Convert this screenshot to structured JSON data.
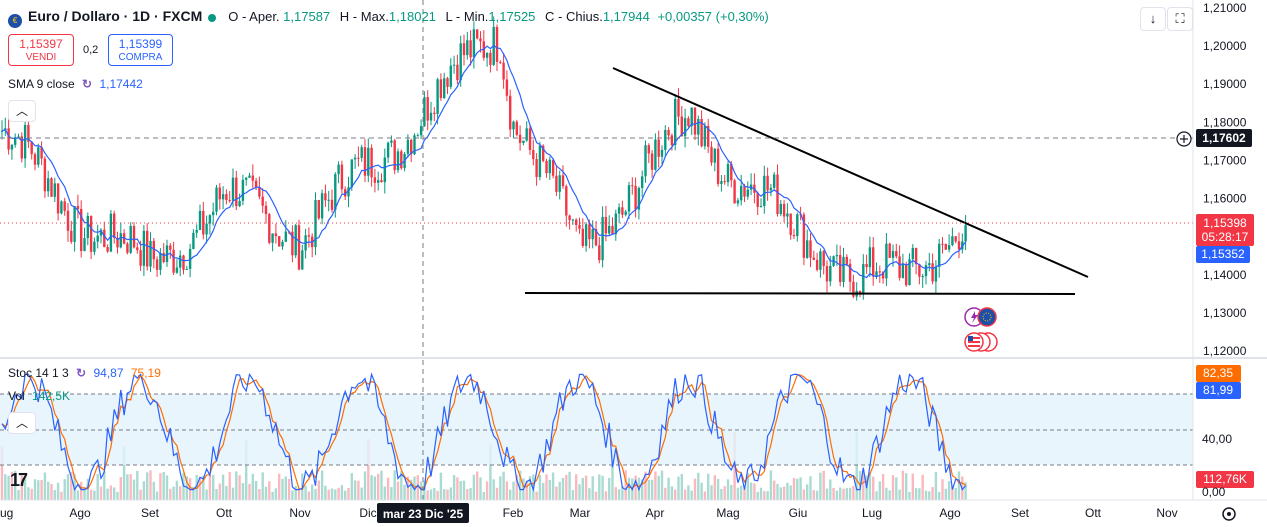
{
  "header": {
    "symbol": "Euro / Dollaro · 1D · FXCM",
    "open_label": "O - Aper.",
    "open_value": "1,17587",
    "high_label": "H - Max.",
    "high_value": "1,18021",
    "low_label": "L - Min.",
    "low_value": "1,17525",
    "close_label": "C - Chius.",
    "close_value": "1,17944",
    "change_value": "+0,00357 (+0,30%)"
  },
  "trade": {
    "sell_price": "1,15397",
    "sell_label": "VENDI",
    "spread": "0,2",
    "buy_price": "1,15399",
    "buy_label": "COMPRA"
  },
  "indicators": {
    "sma_label": "SMA 9 close",
    "sma_value": "1,17442",
    "stoch_label": "Stoc 14 1 3",
    "stoch_k": "94,87",
    "stoch_d": "75,19",
    "vol_label": "Vol",
    "vol_value": "142,5K"
  },
  "price_axis": {
    "labels": [
      "1,21000",
      "1,20000",
      "1,19000",
      "1,18000",
      "1,17000",
      "1,16000",
      "1,15000",
      "1,14000",
      "1,13000",
      "1,12000"
    ],
    "crosshair_label": "1,17602",
    "last_price_label": "1,15398",
    "countdown_label": "05:28:17",
    "sma_price_label": "1,15352"
  },
  "lower_axis": {
    "stoch_k_label": "82,35",
    "stoch_d_label": "81,99",
    "mid_label": "40,00",
    "zero_label": "0,00",
    "vol_label": "112,76K"
  },
  "time_axis": {
    "labels": [
      "ug",
      "Ago",
      "Set",
      "Ott",
      "Nov",
      "Dic",
      "Feb",
      "Mar",
      "Apr",
      "Mag",
      "Giu",
      "Lug",
      "Ago",
      "Set",
      "Ott",
      "Nov"
    ],
    "crosshair_label": "mar 23 Dic '25"
  },
  "colors": {
    "up": "#089981",
    "down": "#f23645",
    "sma": "#2962ff",
    "stoch_k": "#2962ff",
    "stoch_d": "#ff6d00",
    "band": "#e3f2fd",
    "trendline": "#000000"
  },
  "icons": [
    "dollar-euro-pair-icon",
    "arrow-down-icon",
    "fullscreen-icon",
    "add-circle-icon",
    "chevron-up-icon",
    "settings-icon",
    "lightning-euro-event-icon",
    "usa-flag-event-icon"
  ],
  "chart_data": {
    "type": "candlestick",
    "x_range": [
      "2024-07",
      "2025-11"
    ],
    "y_range": [
      1.115,
      1.212
    ],
    "close_path": [
      {
        "date": "2024-07",
        "close": 1.178
      },
      {
        "date": "2024-08",
        "close": 1.155
      },
      {
        "date": "2024-09",
        "close": 1.142
      },
      {
        "date": "2024-10",
        "close": 1.16
      },
      {
        "date": "2024-11",
        "close": 1.151
      },
      {
        "date": "2024-12",
        "close": 1.168
      },
      {
        "date": "2025-01",
        "close": 1.205
      },
      {
        "date": "2025-02",
        "close": 1.183
      },
      {
        "date": "2025-03",
        "close": 1.145
      },
      {
        "date": "2025-04",
        "close": 1.182
      },
      {
        "date": "2025-05",
        "close": 1.168
      },
      {
        "date": "2025-06",
        "close": 1.138
      },
      {
        "date": "2025-07",
        "close": 1.14
      },
      {
        "date": "2025-08",
        "close": 1.154
      }
    ],
    "trendlines": [
      {
        "name": "descending-resistance",
        "from": [
          1.194
        ],
        "to": [
          1.14
        ]
      },
      {
        "name": "horizontal-support",
        "from": [
          1.135
        ],
        "to": [
          1.135
        ]
      }
    ],
    "crosshair": {
      "price": 1.17602,
      "date": "mar 23 Dic '25"
    },
    "stochastic": {
      "k": 94.87,
      "d": 75.19,
      "band": [
        20,
        80
      ]
    },
    "volume_last": "142,5K"
  }
}
